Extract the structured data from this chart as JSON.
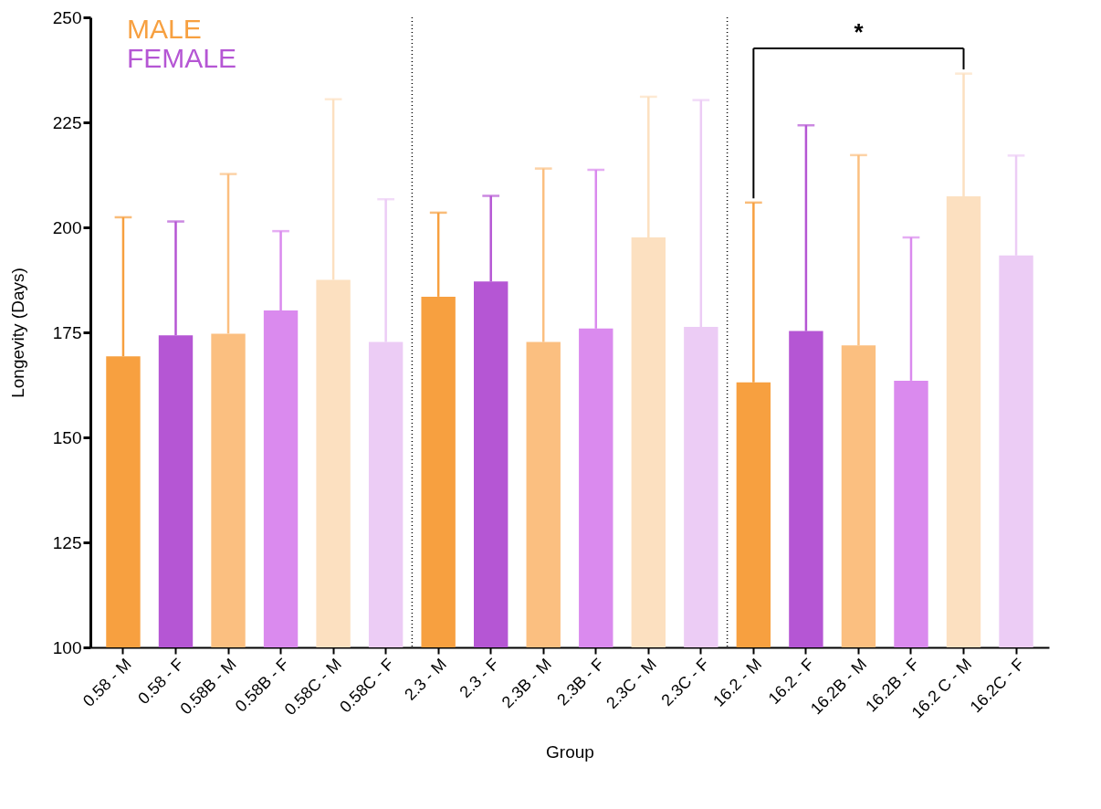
{
  "chart_data": {
    "type": "bar",
    "xlabel": "Group",
    "ylabel": "Longevity (Days)",
    "categories": [
      "0.58 - M",
      "0.58 - F",
      "0.58B - M",
      "0.58B - F",
      "0.58C - M",
      "0.58C - F",
      "2.3 - M",
      "2.3 - F",
      "2.3B - M",
      "2.3B - F",
      "2.3C - M",
      "2.3C - F",
      "16.2 - M",
      "16.2 - F",
      "16.2B - M",
      "16.2B - F",
      "16.2 C - M",
      "16.2C - F"
    ],
    "series": [
      {
        "name": "MALE",
        "color": "#f7a040",
        "values": [
          169.3,
          null,
          174.7,
          null,
          187.5,
          null,
          183.5,
          null,
          172.7,
          null,
          197.6,
          null,
          163.1,
          null,
          171.9,
          null,
          207.4,
          null
        ],
        "colors": [
          "#f7a040",
          null,
          "#fbbf80",
          null,
          "#fce0c0",
          null,
          "#f7a040",
          null,
          "#fbbf80",
          null,
          "#fce0c0",
          null,
          "#f7a040",
          null,
          "#fbbf80",
          null,
          "#fce0c0",
          null
        ],
        "errors": [
          [
            169.3,
            202.4
          ],
          null,
          [
            174.7,
            212.7
          ],
          null,
          [
            187.5,
            230.5
          ],
          null,
          [
            183.5,
            203.5
          ],
          null,
          [
            172.7,
            214.0
          ],
          null,
          [
            197.6,
            231.1
          ],
          null,
          [
            163.1,
            205.9
          ],
          null,
          [
            171.9,
            217.2
          ],
          null,
          [
            207.4,
            236.6
          ],
          null
        ]
      },
      {
        "name": "FEMALE",
        "color": "#b556d4",
        "values": [
          null,
          174.3,
          null,
          180.2,
          null,
          172.7,
          null,
          187.1,
          null,
          175.9,
          null,
          176.3,
          null,
          175.3,
          null,
          163.5,
          null,
          193.3
        ],
        "colors": [
          null,
          "#b556d4",
          null,
          "#da8aee",
          null,
          "#ecccf5",
          null,
          "#b556d4",
          null,
          "#da8aee",
          null,
          "#ecccf5",
          null,
          "#b556d4",
          null,
          "#da8aee",
          null,
          "#ecccf5"
        ],
        "errors": [
          null,
          [
            174.3,
            201.4
          ],
          null,
          [
            180.2,
            199.1
          ],
          null,
          [
            172.7,
            206.7
          ],
          null,
          [
            187.1,
            207.5
          ],
          null,
          [
            175.9,
            213.7
          ],
          null,
          [
            176.3,
            230.3
          ],
          null,
          [
            175.3,
            224.3
          ],
          null,
          [
            163.5,
            197.6
          ],
          null,
          [
            193.3,
            217.1
          ]
        ]
      }
    ],
    "ylim": [
      100,
      250
    ],
    "yticks": [
      100,
      125,
      150,
      175,
      200,
      225,
      250
    ],
    "annotations": [
      "*"
    ],
    "legend": "top left",
    "grid": false
  }
}
